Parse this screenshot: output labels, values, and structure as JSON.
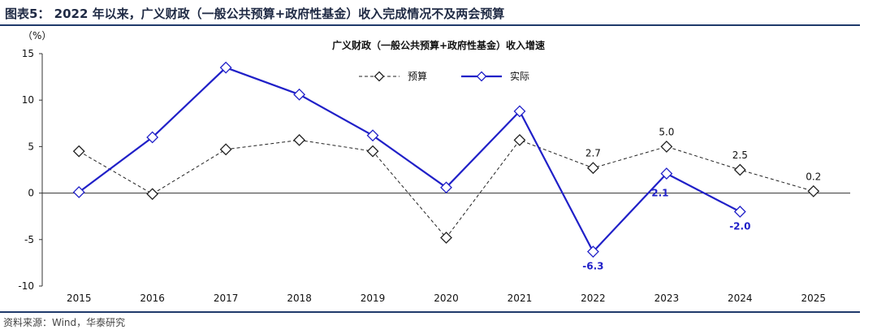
{
  "figure": {
    "title": "图表5： 2022 年以来，广义财政（一般公共预算+政府性基金）收入完成情况不及两会预算",
    "source": "资料来源：Wind，华泰研究"
  },
  "chart_data": {
    "type": "line",
    "title": "广义财政（一般公共预算+政府性基金）收入增速",
    "ylabel": "（%）",
    "xlabel": "",
    "categories": [
      "2015",
      "2016",
      "2017",
      "2018",
      "2019",
      "2020",
      "2021",
      "2022",
      "2023",
      "2024",
      "2025"
    ],
    "ylim": [
      -10,
      15
    ],
    "yticks": [
      15,
      10,
      5,
      0,
      -5,
      -10
    ],
    "ytick_labels": [
      "15",
      "10",
      "5",
      "0",
      "-5",
      "-10"
    ],
    "grid": false,
    "legend": "top-center",
    "series": [
      {
        "name": "预算",
        "style": "dashed",
        "color": "#222222",
        "values": [
          4.5,
          -0.1,
          4.7,
          5.7,
          4.5,
          -4.8,
          5.7,
          2.7,
          5.0,
          2.5,
          0.2
        ],
        "labels": [
          null,
          null,
          null,
          null,
          null,
          null,
          null,
          "2.7",
          "5.0",
          "2.5",
          "0.2"
        ]
      },
      {
        "name": "实际",
        "style": "solid",
        "color": "#2020c8",
        "values": [
          0.1,
          6.0,
          13.5,
          10.6,
          6.2,
          0.6,
          8.8,
          -6.3,
          2.1,
          -2.0,
          null
        ],
        "labels": [
          null,
          null,
          null,
          null,
          null,
          null,
          null,
          "-6.3",
          "2.1",
          "-2.0",
          null
        ]
      }
    ]
  }
}
